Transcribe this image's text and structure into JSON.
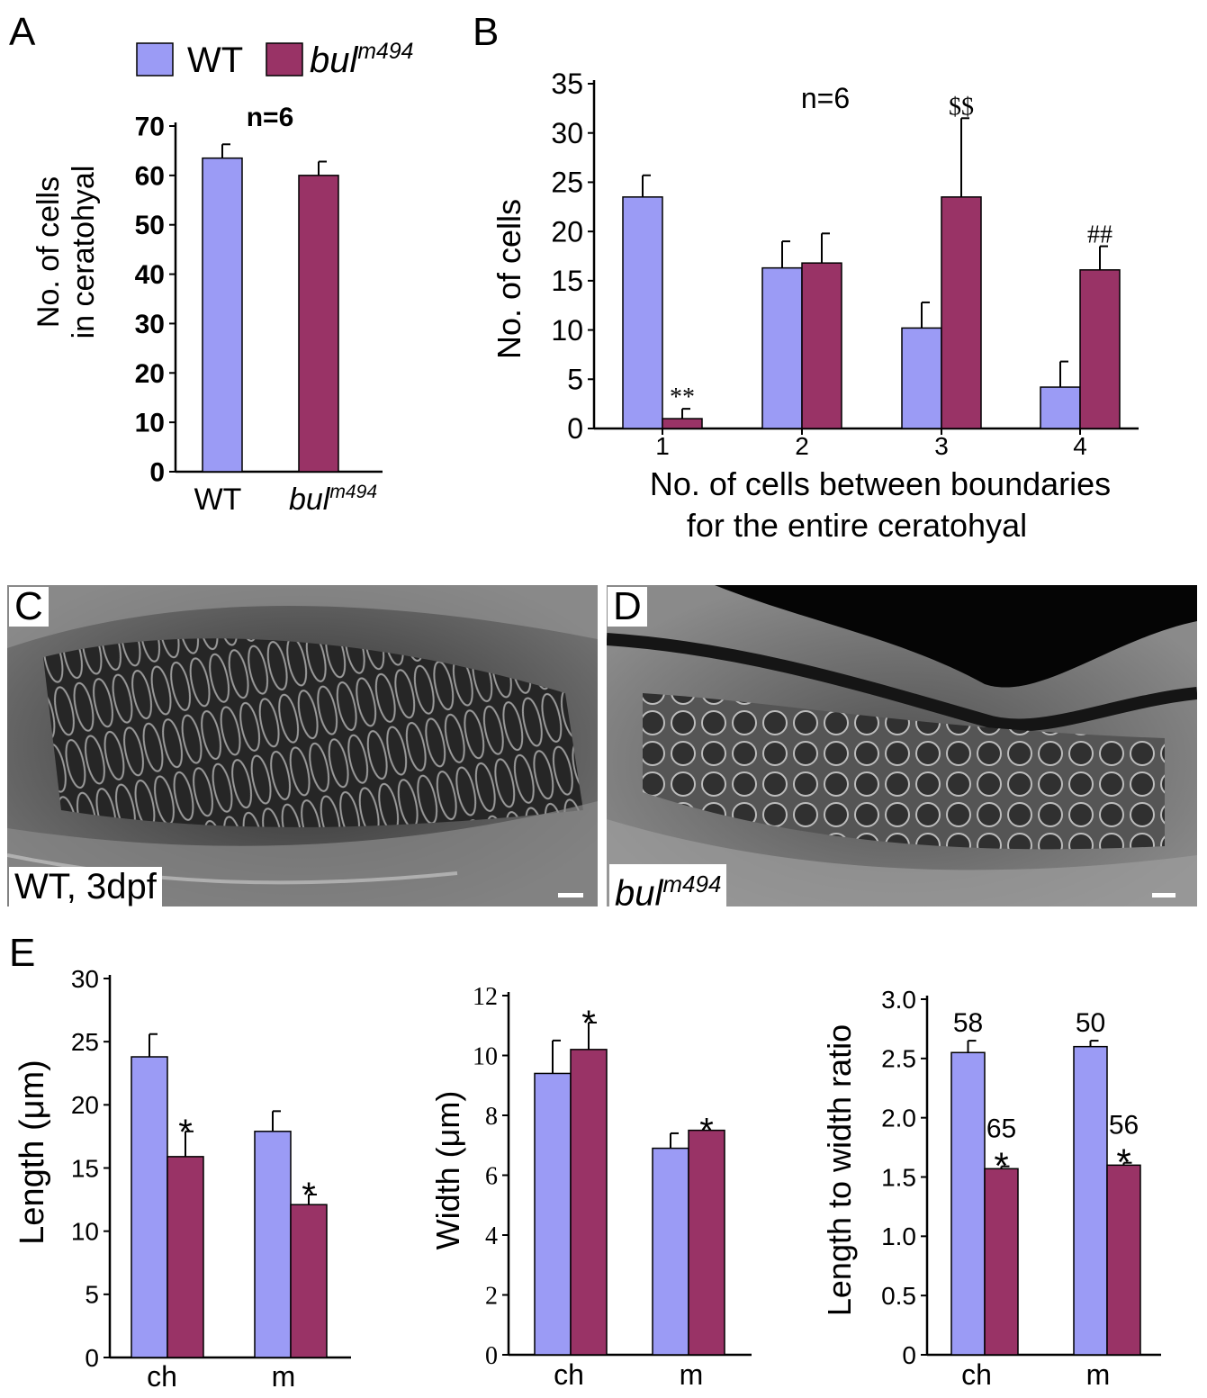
{
  "colors": {
    "wt": "#9b9bf5",
    "mutant": "#993366",
    "stroke": "#000000"
  },
  "legend": {
    "wt_label": "WT",
    "mutant_label": "bul",
    "mutant_sup": "m494"
  },
  "panel_letters": {
    "a": "A",
    "b": "B",
    "c": "C",
    "d": "D",
    "e": "E"
  },
  "chart_data": [
    {
      "id": "A",
      "type": "bar",
      "ylabel_line1": "No. of cells",
      "ylabel_line2": "in ceratohyal",
      "annotation": "n=6",
      "ylim": [
        0,
        70
      ],
      "yticks": [
        "0",
        "10",
        "20",
        "30",
        "40",
        "50",
        "60",
        "70"
      ],
      "categories": [
        {
          "label": "WT",
          "sup": "",
          "italic": false
        },
        {
          "label": "bul",
          "sup": "m494",
          "italic": true
        }
      ],
      "series": [
        {
          "values": [
            63.5,
            60
          ],
          "errors": [
            2.8,
            2.8
          ]
        }
      ]
    },
    {
      "id": "B",
      "type": "bar",
      "ylabel": "No. of cells",
      "xlabel_line1": "No. of cells between boundaries",
      "xlabel_line2": "for the entire ceratohyal",
      "annotation": "n=6",
      "ylim": [
        0,
        35
      ],
      "yticks": [
        "0",
        "5",
        "10",
        "15",
        "20",
        "25",
        "30",
        "35"
      ],
      "categories": [
        "1",
        "2",
        "3",
        "4"
      ],
      "series": [
        {
          "name": "WT",
          "values": [
            23.5,
            16.3,
            10.2,
            4.2
          ],
          "errors": [
            2.2,
            2.7,
            2.6,
            2.6
          ]
        },
        {
          "name": "bul m494",
          "values": [
            1.0,
            16.8,
            23.5,
            16.1
          ],
          "errors": [
            1.0,
            3.0,
            8.0,
            2.4
          ]
        }
      ],
      "marks": [
        "",
        "**",
        "",
        "",
        "",
        "$$",
        "",
        "##"
      ]
    },
    {
      "id": "E1",
      "type": "bar",
      "ylabel": "Length (μm)",
      "ylim": [
        0,
        30
      ],
      "yticks": [
        "0",
        "5",
        "10",
        "15",
        "20",
        "25",
        "30"
      ],
      "categories": [
        "ch",
        "m"
      ],
      "series": [
        {
          "name": "WT",
          "values": [
            23.8,
            17.9
          ],
          "errors": [
            1.8,
            1.6
          ]
        },
        {
          "name": "bul m494",
          "values": [
            15.9,
            12.1
          ],
          "errors": [
            2.0,
            0.8
          ]
        }
      ],
      "marks": [
        "",
        "*",
        "",
        "*"
      ]
    },
    {
      "id": "E2",
      "type": "bar",
      "ylabel": "Width (μm)",
      "ylim": [
        0,
        12
      ],
      "yticks": [
        "0",
        "2",
        "4",
        "6",
        "8",
        "10",
        "12"
      ],
      "categories": [
        "ch",
        "m"
      ],
      "series": [
        {
          "name": "WT",
          "values": [
            9.4,
            6.9
          ],
          "errors": [
            1.1,
            0.5
          ]
        },
        {
          "name": "bul m494",
          "values": [
            10.2,
            7.5
          ],
          "errors": [
            0.9,
            0.0
          ]
        }
      ],
      "marks": [
        "",
        "*",
        "",
        "*"
      ]
    },
    {
      "id": "E3",
      "type": "bar",
      "ylabel": "Length to width ratio",
      "ylim": [
        0,
        3.0
      ],
      "yticks": [
        "0",
        "0.5",
        "1.0",
        "1.5",
        "2.0",
        "2.5",
        "3.0"
      ],
      "categories": [
        "ch",
        "m"
      ],
      "series": [
        {
          "name": "WT",
          "values": [
            2.55,
            2.6
          ],
          "errors": [
            0.1,
            0.05
          ]
        },
        {
          "name": "bul m494",
          "values": [
            1.57,
            1.6
          ],
          "errors": [
            0.02,
            0.02
          ]
        }
      ],
      "counts": [
        "58",
        "65",
        "50",
        "56"
      ],
      "marks": [
        "",
        "*",
        "",
        "*"
      ]
    }
  ],
  "micrographs": {
    "c": {
      "caption": "WT, 3dpf"
    },
    "d": {
      "caption": "bul",
      "caption_sup": "m494"
    }
  }
}
